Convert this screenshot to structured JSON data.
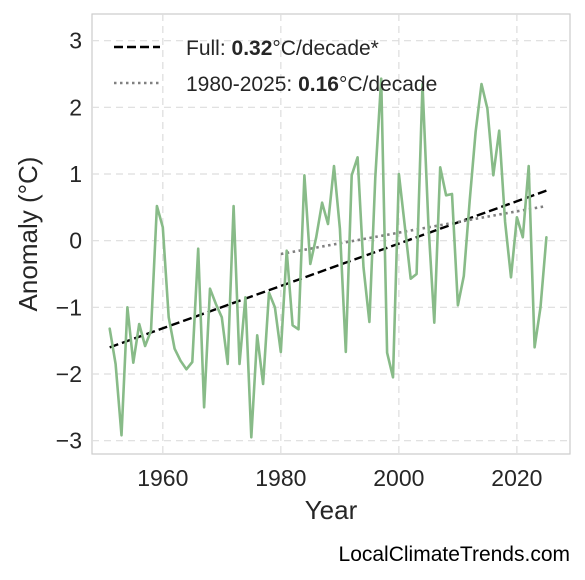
{
  "chart_data": {
    "type": "line",
    "xlabel": "Year",
    "ylabel": "Anomaly (°C)",
    "xlim": [
      1948,
      2029
    ],
    "ylim": [
      -3.2,
      3.4
    ],
    "xticks": [
      1960,
      1980,
      2000,
      2020
    ],
    "yticks": [
      -3,
      -2,
      -1,
      0,
      1,
      2,
      3
    ],
    "xtick_labels": [
      "1960",
      "1980",
      "2000",
      "2020"
    ],
    "ytick_labels": [
      "−3",
      "−2",
      "−1",
      "0",
      "1",
      "2",
      "3"
    ],
    "grid": true,
    "legend_position": "top-left",
    "series": [
      {
        "color": "#88bb88",
        "x": [
          1951,
          1952,
          1953,
          1954,
          1955,
          1956,
          1957,
          1958,
          1959,
          1960,
          1961,
          1962,
          1963,
          1964,
          1965,
          1966,
          1967,
          1968,
          1969,
          1970,
          1971,
          1972,
          1973,
          1974,
          1975,
          1976,
          1977,
          1978,
          1979,
          1980,
          1981,
          1982,
          1983,
          1984,
          1985,
          1986,
          1987,
          1988,
          1989,
          1990,
          1991,
          1992,
          1993,
          1994,
          1995,
          1996,
          1997,
          1998,
          1999,
          2000,
          2001,
          2002,
          2003,
          2004,
          2005,
          2006,
          2007,
          2008,
          2009,
          2010,
          2011,
          2012,
          2013,
          2014,
          2015,
          2016,
          2017,
          2018,
          2019,
          2020,
          2021,
          2022,
          2023,
          2024,
          2025
        ],
        "y": [
          -1.32,
          -1.85,
          -2.92,
          -1.0,
          -1.83,
          -1.25,
          -1.58,
          -1.35,
          0.52,
          0.2,
          -1.15,
          -1.62,
          -1.8,
          -1.93,
          -1.82,
          -0.12,
          -2.5,
          -0.72,
          -0.95,
          -1.15,
          -1.85,
          0.52,
          -1.85,
          -0.85,
          -2.95,
          -1.42,
          -2.15,
          -0.78,
          -1.0,
          -1.67,
          -0.15,
          -1.27,
          -1.33,
          0.98,
          -0.35,
          0.05,
          0.57,
          0.25,
          1.12,
          0.18,
          -1.67,
          0.98,
          1.25,
          -0.4,
          -1.22,
          0.95,
          2.43,
          -1.68,
          -2.05,
          1.0,
          0.22,
          -0.57,
          -0.5,
          2.35,
          0.25,
          -1.23,
          1.1,
          0.68,
          0.7,
          -0.97,
          -0.53,
          0.6,
          1.63,
          2.35,
          1.98,
          0.98,
          1.65,
          0.28,
          -0.55,
          0.35,
          0.05,
          1.12,
          -1.6,
          -1.0,
          0.05
        ]
      }
    ],
    "trend_lines": [
      {
        "style": "dashed",
        "color": "#000000",
        "x": [
          1951,
          2025
        ],
        "y": [
          -1.6,
          0.75
        ]
      },
      {
        "style": "dotted",
        "color": "#808080",
        "x": [
          1980,
          2025
        ],
        "y": [
          -0.2,
          0.52
        ]
      }
    ],
    "legend": [
      {
        "prefix": "Full: ",
        "value": "0.32",
        "suffix": "°C/decade*",
        "style": "dashed",
        "color": "#000000"
      },
      {
        "prefix": "1980-2025: ",
        "value": "0.16",
        "suffix": "°C/decade",
        "style": "dotted",
        "color": "#808080"
      }
    ],
    "watermark": "LocalClimateTrends.com"
  }
}
